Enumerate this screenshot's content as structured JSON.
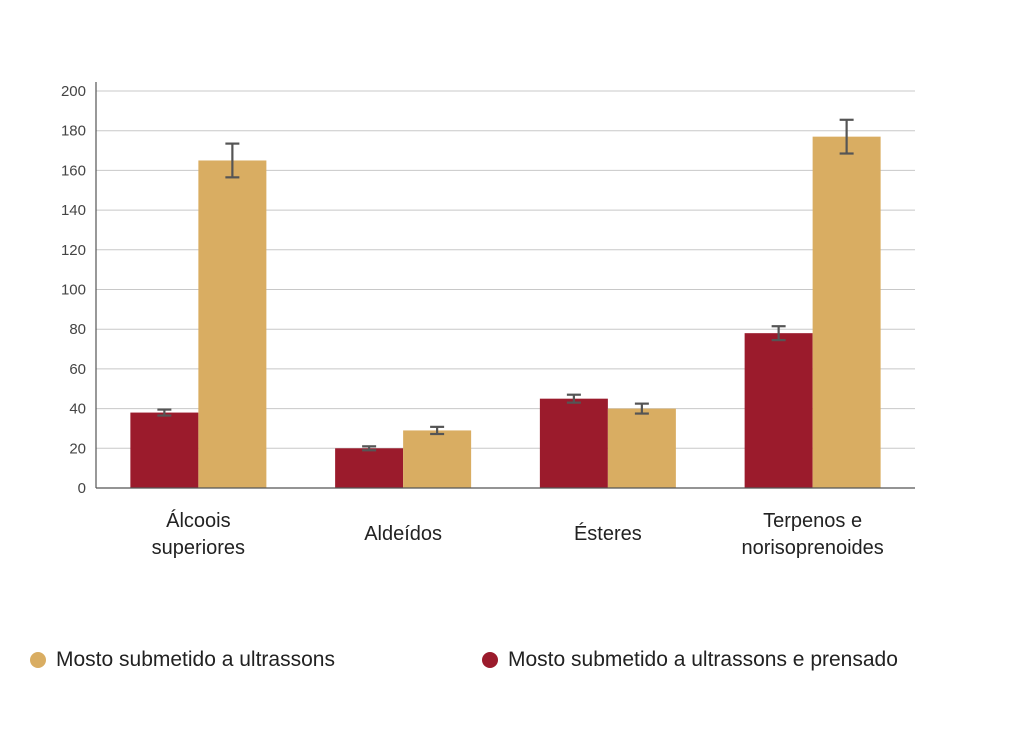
{
  "chart_data": {
    "type": "bar",
    "title": "",
    "xlabel": "",
    "ylabel": "",
    "ylim": [
      0,
      200
    ],
    "yticks": [
      0,
      20,
      40,
      60,
      80,
      100,
      120,
      140,
      160,
      180,
      200
    ],
    "grid": true,
    "legend_position": "bottom",
    "categories": [
      [
        "Álcoois",
        "superiores"
      ],
      [
        "Aldeídos"
      ],
      [
        "Ésteres"
      ],
      [
        "Terpenos e",
        "norisoprenoides"
      ]
    ],
    "series": [
      {
        "name": "Mosto submetido a ultrassons e prensado",
        "color": "#9b1b2c",
        "values": [
          38,
          20,
          45,
          78
        ],
        "errors": [
          1.5,
          1,
          2,
          3.5
        ]
      },
      {
        "name": "Mosto submetido a ultrassons",
        "color": "#d9ad62",
        "values": [
          165,
          29,
          40,
          177
        ],
        "errors": [
          8.5,
          1.8,
          2.5,
          8.5
        ]
      }
    ]
  },
  "legend": {
    "items": [
      {
        "label": "Mosto submetido a ultrassons",
        "color": "#d9ad62"
      },
      {
        "label": "Mosto submetido a ultrassons e prensado",
        "color": "#9b1b2c"
      }
    ]
  }
}
